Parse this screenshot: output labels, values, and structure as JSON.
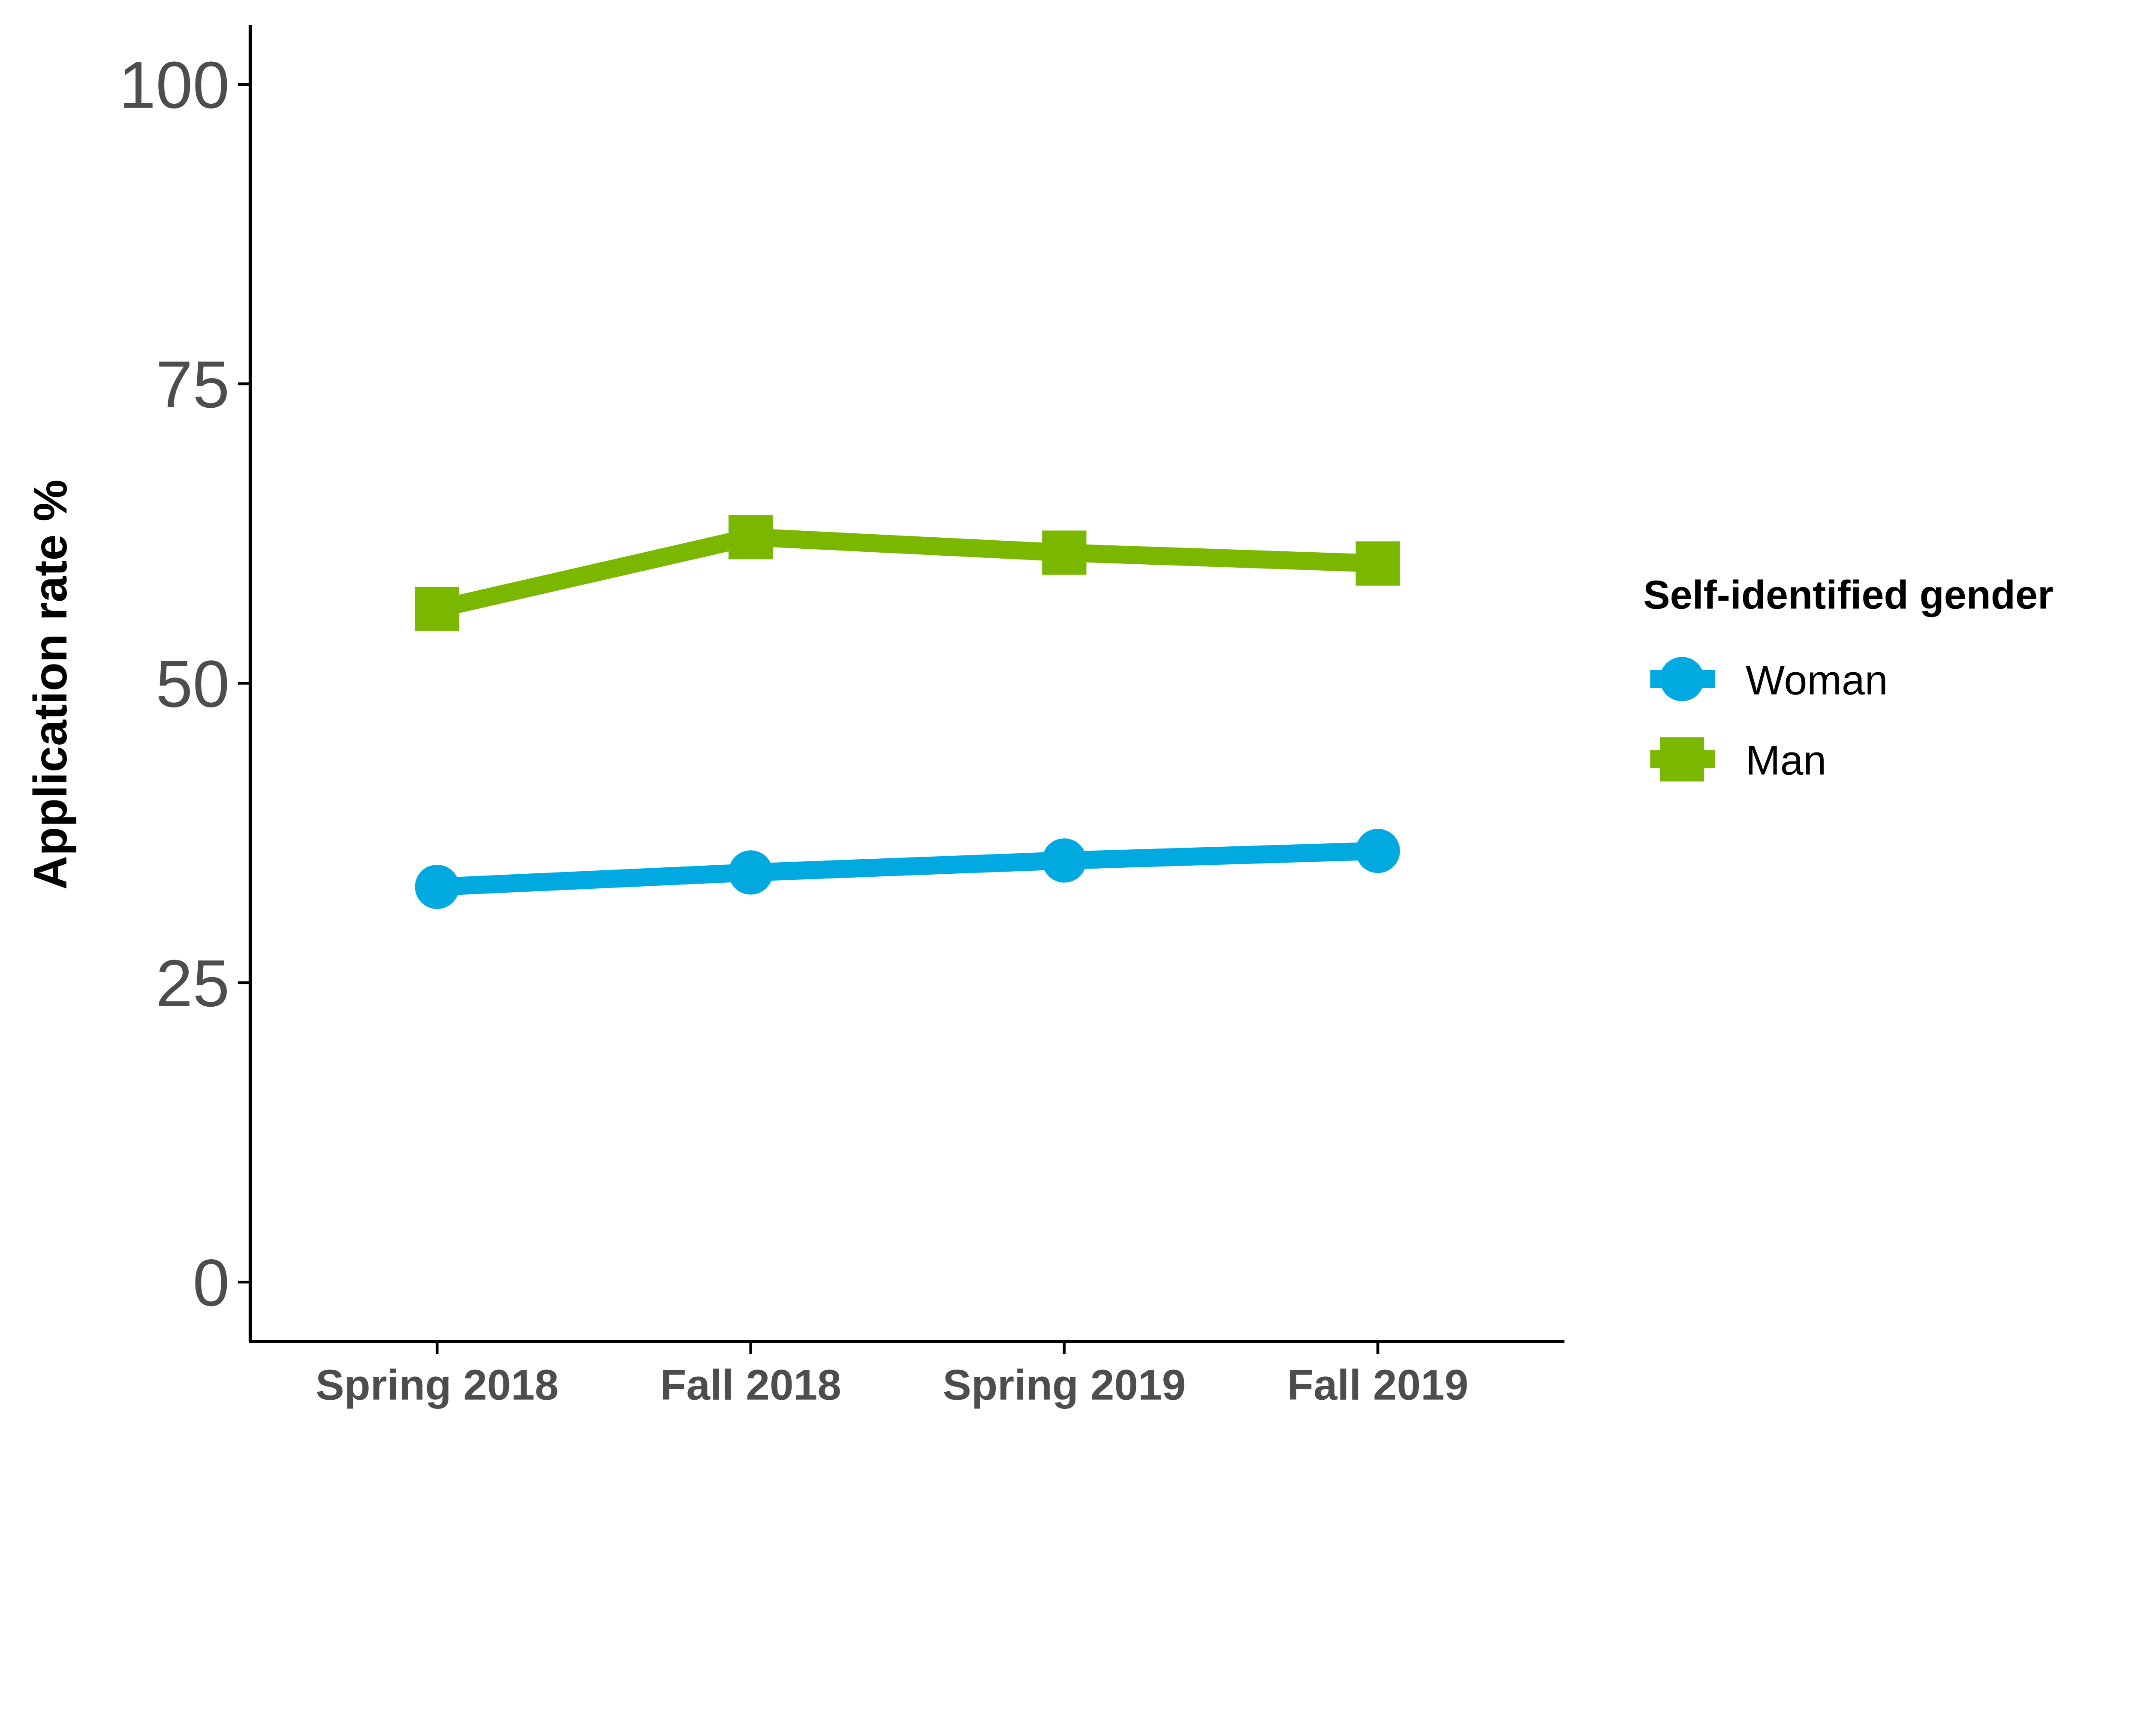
{
  "chart_data": {
    "type": "line",
    "title": "",
    "xlabel": "",
    "ylabel": "Application rate %",
    "ylim": [
      -5,
      105
    ],
    "yticks": [
      0,
      25,
      50,
      75,
      100
    ],
    "ytick_labels": [
      "0",
      "25",
      "50",
      "75",
      "100"
    ],
    "categories": [
      "Spring 2018",
      "Fall 2018",
      "Spring 2019",
      "Fall 2019"
    ],
    "grid": false,
    "legend": {
      "title": "Self-identified gender",
      "placement": "right"
    },
    "series": [
      {
        "name": "Woman",
        "color": "#00A9E0",
        "marker": "circle",
        "values": [
          33.0,
          34.2,
          35.2,
          36.0
        ]
      },
      {
        "name": "Man",
        "color": "#7AB800",
        "marker": "square",
        "values": [
          56.2,
          62.2,
          60.9,
          60.0
        ]
      }
    ]
  }
}
